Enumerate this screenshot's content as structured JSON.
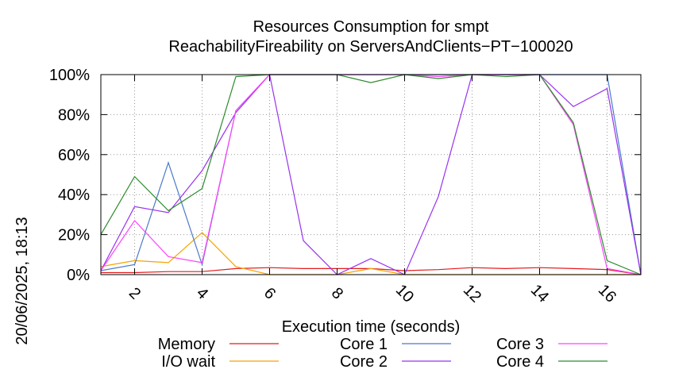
{
  "chart_data": {
    "type": "line",
    "title": [
      "Resources Consumption for smpt",
      "ReachabilityFireability on ServersAndClients−PT−100020"
    ],
    "xlabel": "Execution time (seconds)",
    "ylabel": "",
    "side_label": "20/06/2025, 18:13",
    "xlim": [
      1,
      17
    ],
    "ylim": [
      0,
      100
    ],
    "xticks": [
      2,
      4,
      6,
      8,
      10,
      12,
      14,
      16
    ],
    "yticks": [
      0,
      20,
      40,
      60,
      80,
      100
    ],
    "ytick_labels": [
      "0%",
      "20%",
      "40%",
      "60%",
      "80%",
      "100%"
    ],
    "grid": true,
    "legend_position": "bottom",
    "series": [
      {
        "name": "Memory",
        "color": "#e41a1c",
        "x": [
          1,
          2,
          3,
          4,
          5,
          6,
          7,
          8,
          9,
          10,
          11,
          12,
          13,
          14,
          15,
          16,
          17
        ],
        "values": [
          1,
          1,
          1.5,
          1.5,
          3,
          3.5,
          3,
          3,
          3,
          2,
          2.5,
          3.5,
          3,
          3.5,
          3,
          2.5,
          0
        ]
      },
      {
        "name": "I/O wait",
        "color": "#f5a300",
        "x": [
          1,
          2,
          3,
          4,
          5,
          6,
          7,
          8,
          9,
          10,
          11,
          12,
          13,
          14,
          15,
          16,
          17
        ],
        "values": [
          4,
          7,
          6,
          21,
          4,
          0,
          0,
          0,
          3,
          0,
          0,
          0,
          0,
          0,
          0,
          0,
          0
        ]
      },
      {
        "name": "Core 1",
        "color": "#4a7ac8",
        "x": [
          1,
          2,
          3,
          4,
          5,
          6,
          7,
          8,
          9,
          10,
          11,
          12,
          13,
          14,
          15,
          16,
          17
        ],
        "values": [
          2,
          5,
          56,
          5,
          82,
          100,
          100,
          100,
          100,
          100,
          100,
          100,
          100,
          100,
          100,
          100,
          0
        ]
      },
      {
        "name": "Core 2",
        "color": "#9933ee",
        "x": [
          1,
          2,
          3,
          4,
          5,
          6,
          7,
          8,
          9,
          10,
          11,
          12,
          13,
          14,
          15,
          16,
          17
        ],
        "values": [
          2,
          34,
          31,
          52,
          81,
          100,
          17,
          0,
          8,
          0,
          39,
          100,
          100,
          100,
          84,
          93,
          0
        ]
      },
      {
        "name": "Core 3",
        "color": "#ff44ff",
        "x": [
          1,
          2,
          3,
          4,
          5,
          6,
          7,
          8,
          9,
          10,
          11,
          12,
          13,
          14,
          15,
          16,
          17
        ],
        "values": [
          2,
          27,
          9,
          6,
          82,
          100,
          100,
          100,
          100,
          100,
          99,
          100,
          100,
          100,
          75,
          3,
          0
        ]
      },
      {
        "name": "Core 4",
        "color": "#2e8b2e",
        "x": [
          1,
          2,
          3,
          4,
          5,
          6,
          7,
          8,
          9,
          10,
          11,
          12,
          13,
          14,
          15,
          16,
          17
        ],
        "values": [
          20,
          49,
          32,
          43,
          99,
          100,
          100,
          100,
          96,
          100,
          98,
          100,
          99,
          100,
          76,
          7,
          0
        ]
      }
    ]
  }
}
